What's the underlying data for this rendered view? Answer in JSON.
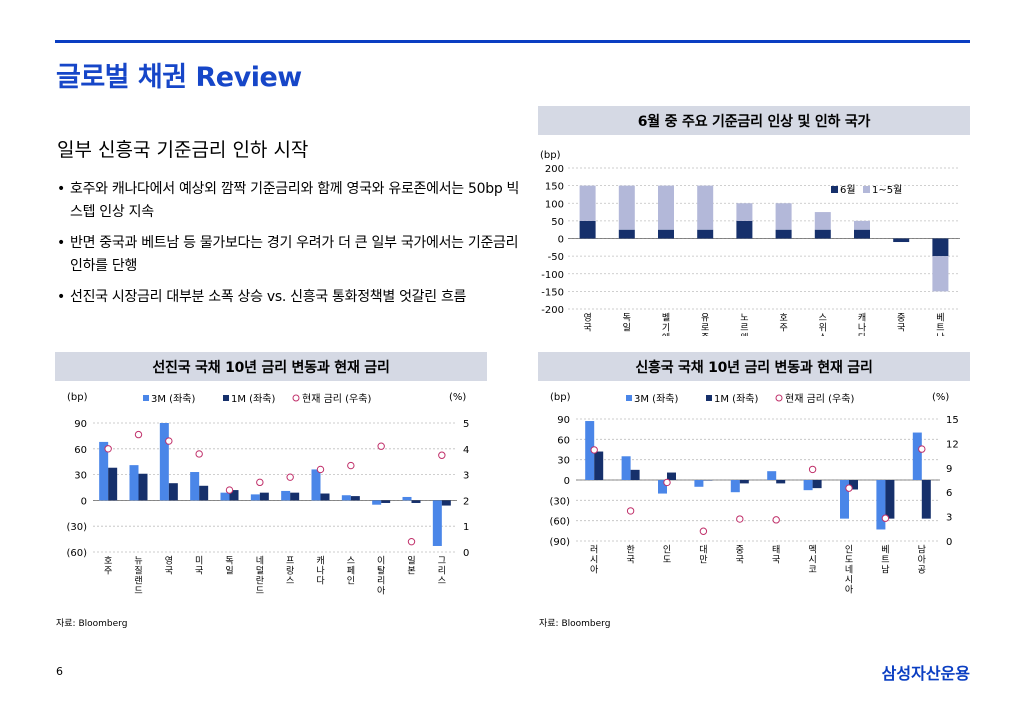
{
  "page": {
    "title": "글로벌 채권 Review",
    "subtitle": "일부 신흥국 기준금리 인하 시작",
    "bullets": [
      "호주와 캐나다에서 예상외 깜짝 기준금리와 함께 영국와 유로존에서는 50bp 빅스텝 인상 지속",
      "반면 중국과 베트남 등 물가보다는 경기 우려가 더 큰 일부 국가에서는 기준금리 인하를 단행",
      "선진국 시장금리 대부분 소폭 상승 vs. 신흥국 통화정책별 엇갈린 흐름"
    ],
    "page_number": "6",
    "brand": "삼성자산운용",
    "source_left": "자료: Bloomberg",
    "source_right": "자료: Bloomberg"
  },
  "colors": {
    "accent": "#0a3ec2",
    "bar_light": "#4a86e8",
    "bar_dark": "#16306b",
    "bar_lavender": "#b3b8d9",
    "marker": "#c0306a",
    "panel_header": "#d5d9e4"
  },
  "chart_data": [
    {
      "id": "policy",
      "type": "bar",
      "stacked": true,
      "title": "6월 중 주요 기준금리 인상 및 인하 국가",
      "unit_left": "(bp)",
      "categories": [
        "영국",
        "독일",
        "벨기에",
        "유로존",
        "노르웨이",
        "호주",
        "스위스",
        "캐나다",
        "중국",
        "베트남"
      ],
      "series": [
        {
          "name": "6월",
          "values": [
            50,
            25,
            25,
            25,
            50,
            25,
            25,
            25,
            -10,
            -50
          ]
        },
        {
          "name": "1~5월",
          "values": [
            100,
            125,
            125,
            125,
            50,
            75,
            50,
            25,
            0,
            -100
          ]
        }
      ],
      "ylim": [
        -200,
        200
      ],
      "yticks": [
        -200,
        -150,
        -100,
        -50,
        0,
        50,
        100,
        150,
        200
      ],
      "legend": "top-right"
    },
    {
      "id": "dm",
      "type": "bar",
      "title": "선진국 국채 10년 금리 변동과 현재 금리",
      "unit_left": "(bp)",
      "unit_right": "(%)",
      "categories": [
        "호주",
        "뉴질랜드",
        "영국",
        "미국",
        "독일",
        "네덜란드",
        "프랑스",
        "캐나다",
        "스페인",
        "이탈리아",
        "일본",
        "그리스"
      ],
      "series": [
        {
          "name": "3M (좌축)",
          "values": [
            68,
            41,
            90,
            33,
            9,
            7,
            11,
            36,
            6,
            -5,
            4,
            -53
          ]
        },
        {
          "name": "1M (좌축)",
          "values": [
            38,
            31,
            20,
            17,
            12,
            9,
            9,
            8,
            5,
            -3,
            -3,
            -6
          ]
        },
        {
          "name": "현재 금리 (우축)",
          "axis": "right",
          "values": [
            4.0,
            4.55,
            4.3,
            3.8,
            2.4,
            2.7,
            2.9,
            3.2,
            3.35,
            4.1,
            0.4,
            3.75
          ]
        }
      ],
      "ylim_left": [
        -60,
        90
      ],
      "yticks_left": [
        "(60)",
        "(30)",
        "0",
        "30",
        "60",
        "90"
      ],
      "ylim_right": [
        0,
        5
      ],
      "yticks_right": [
        "0",
        "1",
        "2",
        "3",
        "4",
        "5"
      ],
      "legend": "top"
    },
    {
      "id": "em",
      "type": "bar",
      "title": "신흥국 국채 10년 금리 변동과 현재 금리",
      "unit_left": "(bp)",
      "unit_right": "(%)",
      "categories": [
        "러시아",
        "한국",
        "인도",
        "대만",
        "중국",
        "태국",
        "멕시코",
        "인도네시아",
        "베트남",
        "남아공"
      ],
      "series": [
        {
          "name": "3M (좌축)",
          "values": [
            87,
            35,
            -20,
            -10,
            -18,
            13,
            -15,
            -57,
            -73,
            70
          ]
        },
        {
          "name": "1M (좌축)",
          "values": [
            42,
            15,
            11,
            0,
            -5,
            -5,
            -12,
            -14,
            -57,
            -57
          ]
        },
        {
          "name": "현재 금리 (우축)",
          "axis": "right",
          "values": [
            11.2,
            3.7,
            7.2,
            1.2,
            2.7,
            2.6,
            8.8,
            6.5,
            2.8,
            11.3
          ]
        }
      ],
      "ylim_left": [
        -90,
        90
      ],
      "yticks_left": [
        "(90)",
        "(60)",
        "(30)",
        "0",
        "30",
        "60",
        "90"
      ],
      "ylim_right": [
        0,
        15
      ],
      "yticks_right": [
        "0",
        "3",
        "6",
        "9",
        "12",
        "15"
      ],
      "legend": "top"
    }
  ]
}
